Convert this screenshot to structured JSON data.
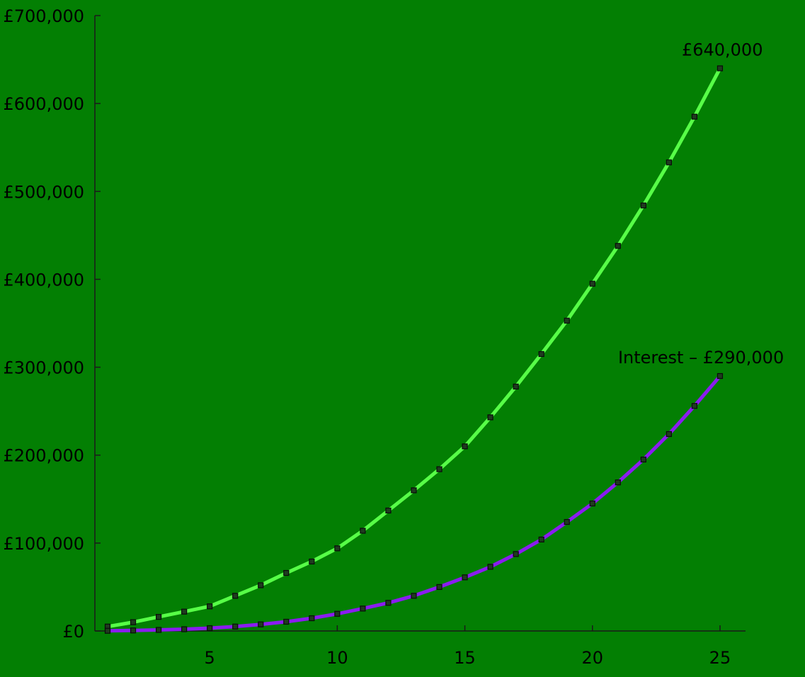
{
  "colors": {
    "background": "#037f03",
    "axis": "#1a1a1a",
    "text": "#000000",
    "total_line": "#57ff47",
    "interest_line": "#8a1cf0",
    "marker": "#1f3b1f"
  },
  "chart_data": {
    "type": "line",
    "title": "",
    "xlabel": "",
    "ylabel": "",
    "xlim": [
      0.5,
      26
    ],
    "ylim": [
      0,
      700000
    ],
    "x_ticks": [
      5,
      10,
      15,
      20,
      25
    ],
    "y_ticks": [
      0,
      100000,
      200000,
      300000,
      400000,
      500000,
      600000,
      700000
    ],
    "x_tick_labels": [
      "5",
      "10",
      "15",
      "20",
      "25"
    ],
    "y_tick_labels": [
      "£0",
      "£100,000",
      "£200,000",
      "£300,000",
      "£400,000",
      "£500,000",
      "£600,000",
      "£700,000"
    ],
    "grid": false,
    "x": [
      1,
      2,
      3,
      4,
      5,
      6,
      7,
      8,
      9,
      10,
      11,
      12,
      13,
      14,
      15,
      16,
      17,
      18,
      19,
      20,
      21,
      22,
      23,
      24,
      25
    ],
    "series": [
      {
        "values": [
          5000,
          10000,
          16000,
          22000,
          28000,
          40000,
          52000,
          66000,
          79000,
          94000,
          114000,
          137000,
          160000,
          184000,
          210000,
          243000,
          278000,
          315000,
          353000,
          395000,
          438000,
          484000,
          533000,
          585000,
          640000
        ],
        "end_label": "£640,000",
        "color": "#57ff47"
      },
      {
        "values": [
          200,
          600,
          1200,
          2000,
          3200,
          5000,
          7500,
          10500,
          14500,
          19500,
          25500,
          32000,
          40000,
          50000,
          61000,
          73000,
          87500,
          104000,
          124000,
          145000,
          169000,
          195000,
          224000,
          256000,
          290000
        ],
        "end_label": "Interest – £290,000",
        "color": "#8a1cf0"
      }
    ]
  }
}
